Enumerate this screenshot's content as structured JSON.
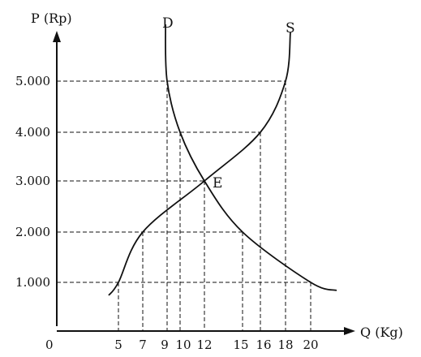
{
  "chart_data": {
    "type": "line",
    "title": "",
    "ylabel": "P (Rp)",
    "xlabel": "Q (Kg)",
    "origin_label": "0",
    "xlim": [
      0,
      20
    ],
    "ylim": [
      0,
      5000
    ],
    "grid": false,
    "x_ticks": [
      {
        "value": 5,
        "label": "5"
      },
      {
        "value": 7,
        "label": "7"
      },
      {
        "value": 9,
        "label": "9"
      },
      {
        "value": 10,
        "label": "10"
      },
      {
        "value": 12,
        "label": "12"
      },
      {
        "value": 15,
        "label": "15"
      },
      {
        "value": 16,
        "label": "16"
      },
      {
        "value": 18,
        "label": "18"
      },
      {
        "value": 20,
        "label": "20"
      }
    ],
    "y_ticks": [
      {
        "value": 1000,
        "label": "1.000"
      },
      {
        "value": 2000,
        "label": "2.000"
      },
      {
        "value": 3000,
        "label": "3.000"
      },
      {
        "value": 4000,
        "label": "4.000"
      },
      {
        "value": 5000,
        "label": "5.000"
      }
    ],
    "series": [
      {
        "name": "D",
        "points": [
          [
            9,
            5000
          ],
          [
            10,
            4000
          ],
          [
            12,
            3000
          ],
          [
            15,
            2000
          ],
          [
            20,
            1000
          ]
        ]
      },
      {
        "name": "S",
        "points": [
          [
            5,
            1000
          ],
          [
            7,
            2000
          ],
          [
            12,
            3000
          ],
          [
            16,
            4000
          ],
          [
            18,
            5000
          ]
        ]
      }
    ],
    "annotations": [
      {
        "text": "E",
        "x": 12,
        "y": 3000
      }
    ],
    "guide_lines": {
      "horizontal": [
        {
          "y": 5000,
          "x_to": 18
        },
        {
          "y": 4000,
          "x_to": 16
        },
        {
          "y": 3000,
          "x_to": 12
        },
        {
          "y": 2000,
          "x_to": 15
        },
        {
          "y": 1000,
          "x_to": 20
        }
      ],
      "vertical": [
        {
          "x": 5,
          "y_to": 1000
        },
        {
          "x": 7,
          "y_to": 2000
        },
        {
          "x": 9,
          "y_to": 5000
        },
        {
          "x": 10,
          "y_to": 4000
        },
        {
          "x": 12,
          "y_to": 3000
        },
        {
          "x": 15,
          "y_to": 2000
        },
        {
          "x": 16,
          "y_to": 4000
        },
        {
          "x": 18,
          "y_to": 5000
        },
        {
          "x": 20,
          "y_to": 1000
        }
      ]
    }
  }
}
